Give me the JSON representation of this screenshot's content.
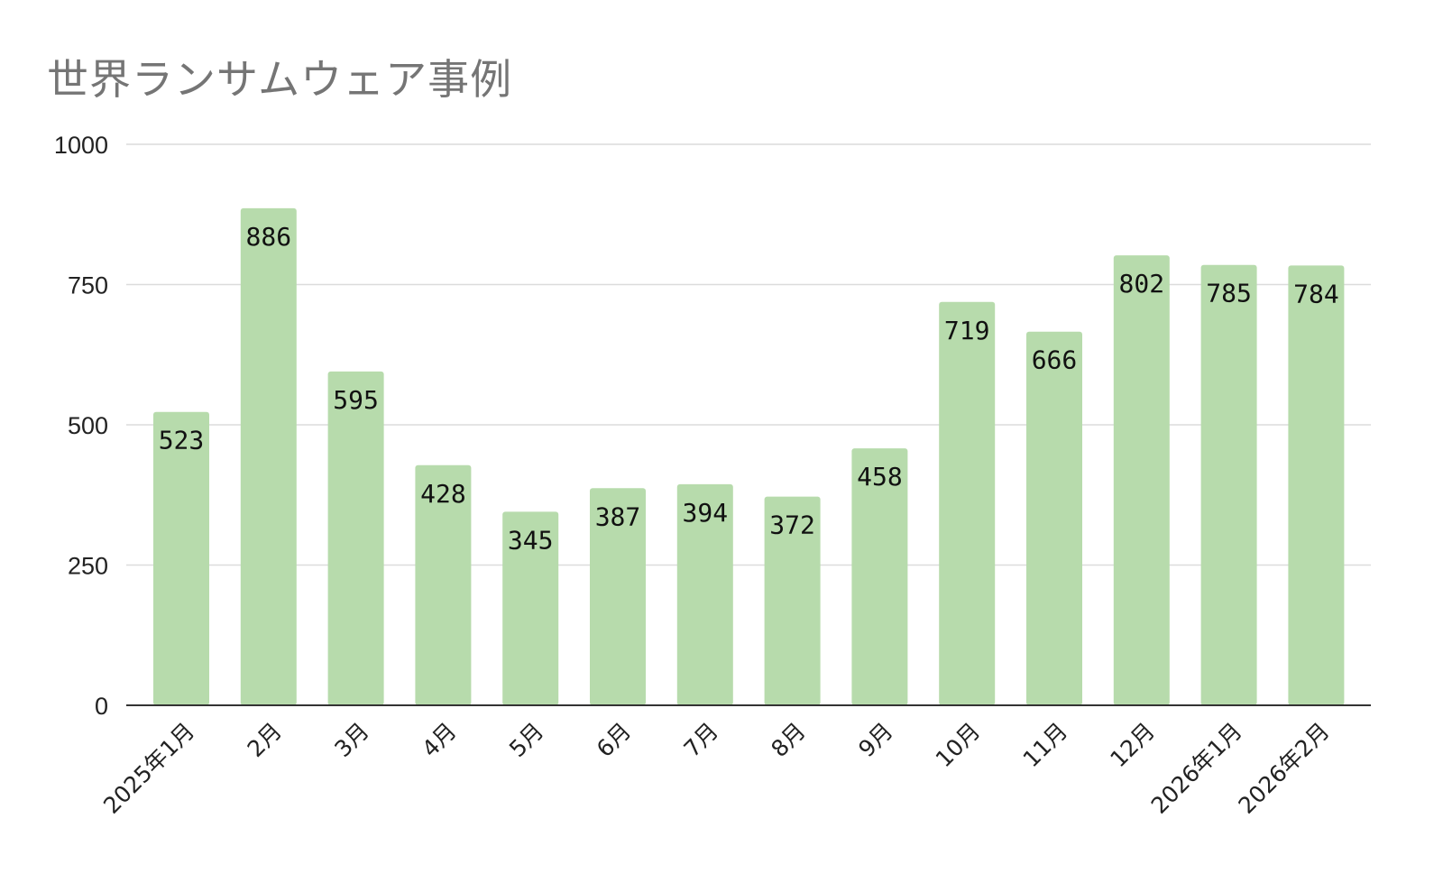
{
  "chart_data": {
    "type": "bar",
    "title": "世界ランサムウェア事例",
    "xlabel": "",
    "ylabel": "",
    "categories": [
      "2025年1月",
      "2月",
      "3月",
      "4月",
      "5月",
      "6月",
      "7月",
      "8月",
      "9月",
      "10月",
      "11月",
      "12月",
      "2026年1月",
      "2026年2月"
    ],
    "values": [
      523,
      886,
      595,
      428,
      345,
      387,
      394,
      372,
      458,
      719,
      666,
      802,
      785,
      784
    ],
    "ylim": [
      0,
      1000
    ],
    "yticks": [
      0,
      250,
      500,
      750,
      1000
    ],
    "grid": true,
    "legend": "none",
    "bar_color": "#b7dbac",
    "data_labels": true
  }
}
